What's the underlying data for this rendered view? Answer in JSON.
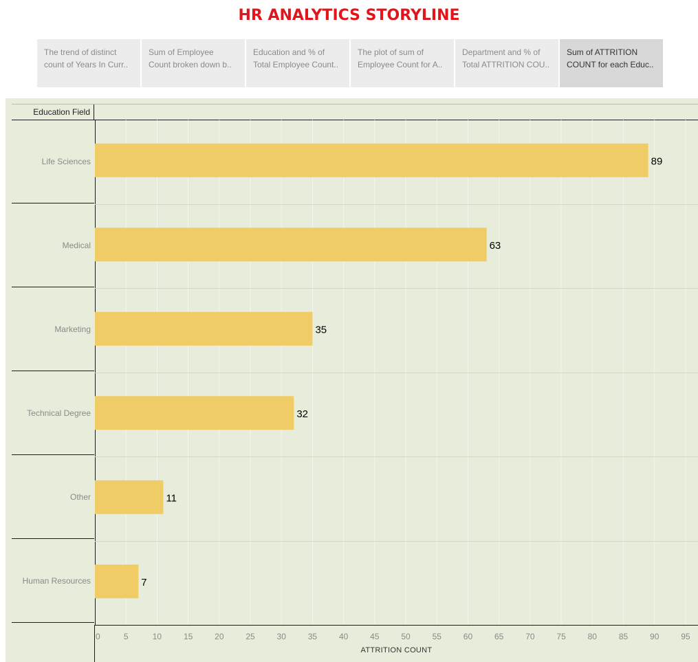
{
  "title": "HR ANALYTICS STORYLINE",
  "story_points": [
    {
      "line1": "The trend of distinct",
      "line2": "count of Years In Curr.."
    },
    {
      "line1": "Sum of Employee",
      "line2": "Count broken down b.."
    },
    {
      "line1": "Education and % of",
      "line2": "Total Employee Count.."
    },
    {
      "line1": "The plot of sum of",
      "line2": "Employee Count for A.."
    },
    {
      "line1": "Department and % of",
      "line2": "Total ATTRITION COU.."
    },
    {
      "line1": "Sum of ATTRITION",
      "line2": "COUNT for each Educ.."
    }
  ],
  "active_story_point": 5,
  "row_header": "Education Field",
  "chart_data": {
    "type": "bar",
    "orientation": "horizontal",
    "categories": [
      "Life Sciences",
      "Medical",
      "Marketing",
      "Technical Degree",
      "Other",
      "Human Resources"
    ],
    "values": [
      89,
      63,
      35,
      32,
      11,
      7
    ],
    "xlabel": "ATTRITION COUNT",
    "xlim": [
      0,
      97
    ],
    "xticks": [
      0,
      5,
      10,
      15,
      20,
      25,
      30,
      35,
      40,
      45,
      50,
      55,
      60,
      65,
      70,
      75,
      80,
      85,
      90,
      95
    ],
    "grid": true,
    "bar_color": "#f0cc66",
    "label_color": "#000000"
  },
  "colors": {
    "title": "#e0161c",
    "background": "#e8ecda",
    "bar": "#f0cc66"
  }
}
